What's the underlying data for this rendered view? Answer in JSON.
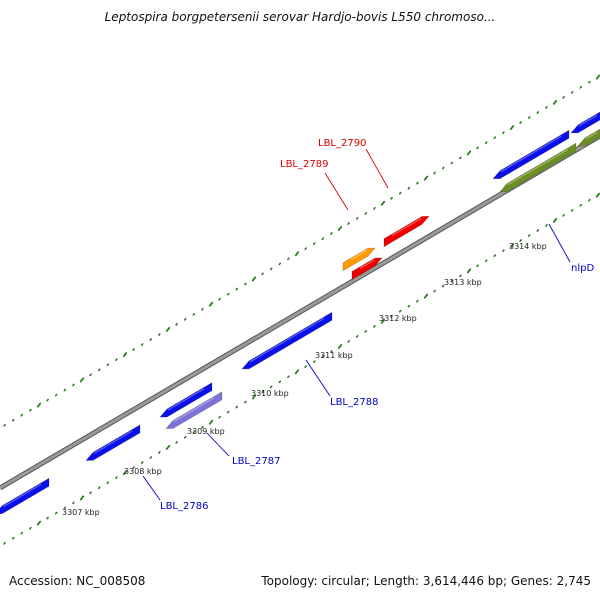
{
  "title": "Leptospira borgpetersenii serovar Hardjo-bovis L550 chromoso...",
  "footer": {
    "accession": "Accession: NC_008508",
    "summary": "Topology: circular; Length: 3,614,446 bp; Genes: 2,745"
  },
  "colors": {
    "backbone": "#888888",
    "tick": "#2a7a1e",
    "gene_blue": "#0a10e8",
    "gene_purple": "#7c72d8",
    "gene_red": "#ee0000",
    "gene_orange": "#ff9900",
    "gene_olive": "#6a8f22",
    "label_blue": "#0000cc",
    "label_red": "#dd0000"
  },
  "kbp_labels": [
    "3307 kbp",
    "3308 kbp",
    "3309 kbp",
    "3310 kbp",
    "3311 kbp",
    "3312 kbp",
    "3313 kbp",
    "3314 kbp"
  ],
  "genes": [
    {
      "label": "",
      "color": "blue",
      "strand": "-"
    },
    {
      "label": "LBL_2786",
      "color": "blue",
      "strand": "-"
    },
    {
      "label": "",
      "color": "blue",
      "strand": "-"
    },
    {
      "label": "LBL_2787",
      "color": "purple",
      "strand": "-"
    },
    {
      "label": "LBL_2788",
      "color": "blue",
      "strand": "-"
    },
    {
      "label": "LBL_2789",
      "color": "orange",
      "strand": "+"
    },
    {
      "label": "",
      "color": "red",
      "strand": "+"
    },
    {
      "label": "LBL_2790",
      "color": "red",
      "strand": "+"
    },
    {
      "label": "",
      "color": "blue",
      "strand": "-"
    },
    {
      "label": "",
      "color": "blue",
      "strand": "-"
    },
    {
      "label": "nlpD",
      "color": "olive",
      "strand": "-"
    },
    {
      "label": "",
      "color": "olive",
      "strand": "-"
    }
  ]
}
